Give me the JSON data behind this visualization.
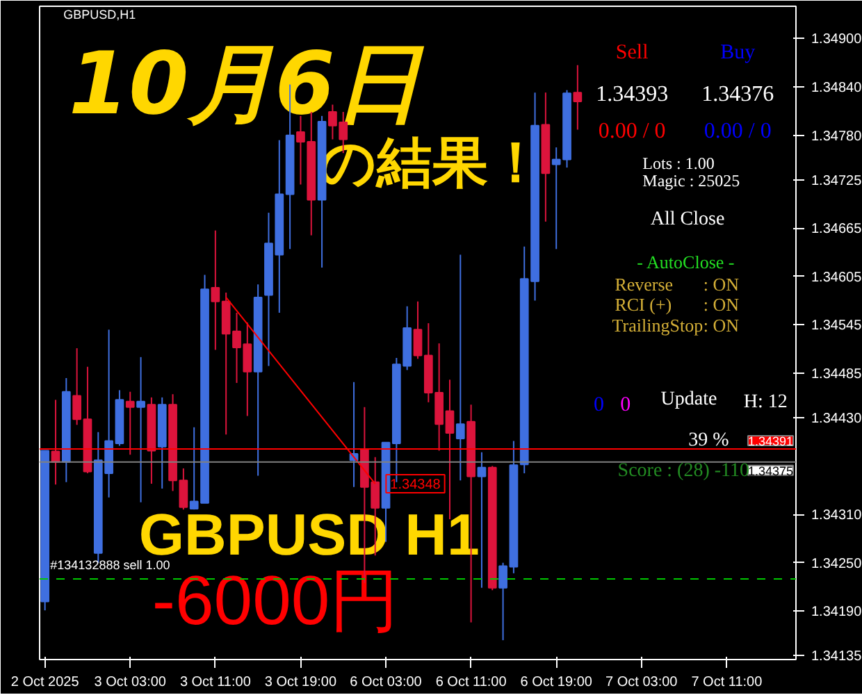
{
  "chart_data": {
    "type": "candlestick",
    "title": "10月6日",
    "subtitle": "の結果！",
    "categories": [
      "2 Oct 2025",
      null,
      null,
      null,
      null,
      null,
      null,
      null,
      "3 Oct 03:00",
      null,
      null,
      null,
      null,
      null,
      null,
      null,
      "3 Oct 11:00",
      null,
      null,
      null,
      null,
      null,
      null,
      null,
      "3 Oct 19:00",
      null,
      null,
      null,
      null,
      null,
      null,
      null,
      "6 Oct 03:00",
      null,
      null,
      null,
      null,
      null,
      null,
      null,
      "6 Oct 11:00",
      null,
      null,
      null,
      null,
      null,
      null,
      null,
      "6 Oct 19:00",
      null,
      null,
      null,
      null,
      null,
      null,
      null,
      "7 Oct 03:00",
      null,
      null,
      null,
      null,
      null,
      null,
      null,
      "7 Oct 11:00",
      null,
      null,
      null,
      null,
      null,
      null
    ],
    "ohlc": [
      [
        1.34202,
        1.34389,
        1.34191,
        1.34389
      ],
      [
        1.34388,
        1.34452,
        1.34347,
        1.34375
      ],
      [
        1.34375,
        1.34479,
        1.3435,
        1.34462
      ],
      [
        1.34457,
        1.34516,
        1.34421,
        1.34428
      ],
      [
        1.34428,
        1.34493,
        1.34361,
        1.34363
      ],
      [
        1.34262,
        1.34412,
        1.3425,
        1.34377
      ],
      [
        1.34361,
        1.34539,
        1.34331,
        1.34401
      ],
      [
        1.34398,
        1.34464,
        1.34395,
        1.34452
      ],
      [
        1.3445,
        1.34462,
        1.34384,
        1.34443
      ],
      [
        1.34443,
        1.34505,
        1.34325,
        1.3445
      ],
      [
        1.34446,
        1.34455,
        1.34348,
        1.34389
      ],
      [
        1.34394,
        1.34455,
        1.34342,
        1.34446
      ],
      [
        1.34446,
        1.34459,
        1.34339,
        1.34352
      ],
      [
        1.34352,
        1.34367,
        1.34316,
        1.34319
      ],
      [
        1.34317,
        1.34418,
        1.34316,
        1.34326
      ],
      [
        1.34324,
        1.34607,
        1.34324,
        1.34589
      ],
      [
        1.34591,
        1.34662,
        1.34514,
        1.34574
      ],
      [
        1.34574,
        1.34585,
        1.34409,
        1.34534
      ],
      [
        1.34537,
        1.3456,
        1.34473,
        1.34517
      ],
      [
        1.34521,
        1.34548,
        1.34432,
        1.34487
      ],
      [
        1.34487,
        1.34595,
        1.34358,
        1.34579
      ],
      [
        1.34582,
        1.34684,
        1.34494,
        1.34646
      ],
      [
        1.34632,
        1.34774,
        1.3456,
        1.34707
      ],
      [
        1.34707,
        1.34843,
        1.34639,
        1.3478
      ],
      [
        1.34784,
        1.34804,
        1.34719,
        1.34772
      ],
      [
        1.34772,
        1.34809,
        1.34656,
        1.347
      ],
      [
        1.347,
        1.34804,
        1.34616,
        1.34797
      ],
      [
        1.34809,
        1.34818,
        1.34775,
        1.34792
      ],
      [
        1.34796,
        1.34809,
        1.34758,
        1.34775
      ],
      [
        1.34377,
        1.34474,
        1.34344,
        1.34385
      ],
      [
        1.3439,
        1.34443,
        1.34225,
        1.34344
      ],
      [
        1.3435,
        1.34381,
        1.34259,
        1.34318
      ],
      [
        1.34318,
        1.34399,
        1.34276,
        1.34399
      ],
      [
        1.34398,
        1.34504,
        1.3435,
        1.34496
      ],
      [
        1.34494,
        1.34568,
        1.34489,
        1.34541
      ],
      [
        1.34539,
        1.34574,
        1.34503,
        1.34507
      ],
      [
        1.34507,
        1.34547,
        1.34449,
        1.34461
      ],
      [
        1.34461,
        1.34522,
        1.34389,
        1.34422
      ],
      [
        1.34438,
        1.34477,
        1.34304,
        1.34411
      ],
      [
        1.34404,
        1.34632,
        1.34352,
        1.34422
      ],
      [
        1.34425,
        1.34446,
        1.34176,
        1.34357
      ],
      [
        1.34357,
        1.34387,
        1.34219,
        1.34368
      ],
      [
        1.34368,
        1.3437,
        1.34216,
        1.34219
      ],
      [
        1.34219,
        1.3425,
        1.34154,
        1.34246
      ],
      [
        1.34245,
        1.34401,
        1.34237,
        1.34371
      ],
      [
        1.34372,
        1.34642,
        1.34361,
        1.34602
      ],
      [
        1.34599,
        1.34833,
        1.34575,
        1.34792
      ],
      [
        1.34793,
        1.34833,
        1.34673,
        1.34733
      ],
      [
        1.34744,
        1.34765,
        1.34639,
        1.3475
      ],
      [
        1.3475,
        1.34836,
        1.3474,
        1.34832
      ],
      [
        1.34833,
        1.34867,
        1.34787,
        1.34822
      ],
      null,
      null,
      null,
      null,
      null,
      null,
      null,
      null,
      null,
      null,
      null,
      null,
      null,
      null,
      null,
      null,
      null,
      null,
      null,
      null
    ],
    "colors": [
      "#3f6fe0",
      "#dc143c",
      "#3f6fe0",
      "#dc143c",
      "#dc143c",
      "#3f6fe0",
      "#3f6fe0",
      "#3f6fe0",
      "#dc143c",
      "#3f6fe0",
      "#dc143c",
      "#3f6fe0",
      "#dc143c",
      "#dc143c",
      "#3f6fe0",
      "#3f6fe0",
      "#dc143c",
      "#dc143c",
      "#dc143c",
      "#dc143c",
      "#3f6fe0",
      "#3f6fe0",
      "#3f6fe0",
      "#3f6fe0",
      "#dc143c",
      "#dc143c",
      "#3f6fe0",
      "#dc143c",
      "#dc143c",
      "#3f6fe0",
      "#dc143c",
      "#dc143c",
      "#3f6fe0",
      "#3f6fe0",
      "#3f6fe0",
      "#dc143c",
      "#dc143c",
      "#dc143c",
      "#dc143c",
      "#3f6fe0",
      "#dc143c",
      "#3f6fe0",
      "#dc143c",
      "#3f6fe0",
      "#3f6fe0",
      "#3f6fe0",
      "#3f6fe0",
      "#dc143c",
      "#3f6fe0",
      "#3f6fe0",
      "#dc143c",
      null,
      null,
      null,
      null,
      null,
      null,
      null,
      null,
      null,
      null,
      null,
      null,
      null,
      null,
      null,
      null,
      null,
      null,
      null,
      null
    ],
    "series": [
      {
        "type": "line",
        "color": "#ff0000",
        "values": [
          null,
          null,
          null,
          null,
          null,
          null,
          null,
          null,
          null,
          null,
          null,
          null,
          null,
          null,
          null,
          null,
          null,
          1.34579,
          null,
          null,
          null,
          null,
          null,
          null,
          null,
          null,
          null,
          null,
          null,
          null,
          null,
          1.34348,
          null,
          null,
          null,
          null,
          null,
          null,
          null,
          null,
          null,
          null,
          null,
          null,
          null,
          null,
          null,
          null,
          null,
          null,
          null,
          null,
          null,
          null,
          null,
          null,
          null,
          null,
          null,
          null,
          null,
          null,
          null,
          null,
          null,
          null,
          null,
          null,
          null,
          null,
          null
        ]
      }
    ],
    "ylim": [
      1.3413,
      1.3494
    ],
    "yticks": [
      {
        "value": 1.349,
        "label": "1.34900"
      },
      {
        "value": 1.3484,
        "label": "1.34840"
      },
      {
        "value": 1.3478,
        "label": "1.34780"
      },
      {
        "value": 1.34725,
        "label": "1.34725"
      },
      {
        "value": 1.34665,
        "label": "1.34665"
      },
      {
        "value": 1.34605,
        "label": "1.34605"
      },
      {
        "value": 1.34545,
        "label": "1.34545"
      },
      {
        "value": 1.34485,
        "label": "1.34485"
      },
      {
        "value": 1.3443,
        "label": "1.34430"
      },
      {
        "value": 1.3431,
        "label": "1.34310"
      },
      {
        "value": 1.3425,
        "label": "1.34250"
      },
      {
        "value": 1.3419,
        "label": "1.34190"
      },
      {
        "value": 1.34135,
        "label": "1.34135"
      }
    ],
    "ref_lines": [
      {
        "axis": "y",
        "value": 1.34391,
        "label": "1.34391",
        "color": "#ff0000"
      },
      {
        "axis": "y",
        "value": 1.34375,
        "label": "1.34375",
        "color": "#808080"
      },
      {
        "axis": "y",
        "value": 1.3423,
        "label": "#134132888 sell 1.00",
        "color": "#00c800",
        "line_style": "dashed"
      }
    ],
    "annotations": [
      "GBPUSD,H1",
      "GBPUSD H1",
      "-6000円",
      "Sell",
      "Buy",
      "1.34393",
      "1.34376",
      "0.00 / 0",
      "0.00 / 0",
      "Lots   : 1.00",
      "Magic : 25025",
      "All Close",
      "- AutoClose -",
      "Reverse",
      ": ON",
      "RCI  (+)",
      ": ON",
      "TrailingStop",
      ": ON",
      "0",
      "0",
      "Update",
      "H: 12",
      "39 %",
      "Score : (28) -110",
      {
        "text": "1.34348",
        "y": 1.34348
      }
    ]
  }
}
